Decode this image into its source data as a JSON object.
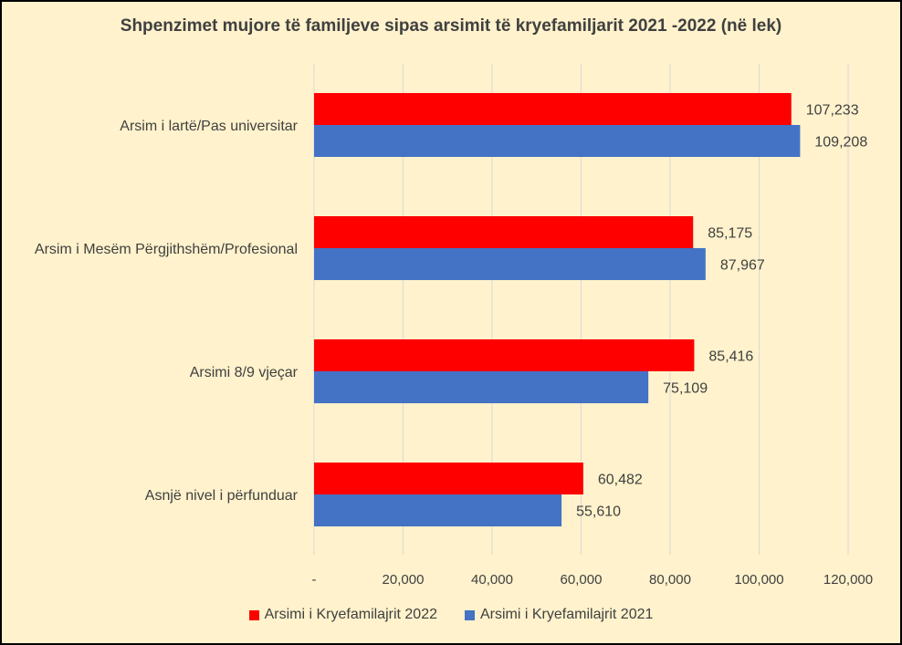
{
  "chart_data": {
    "type": "bar",
    "orientation": "horizontal",
    "title": "Shpenzimet mujore të familjeve sipas arsimit të kryefamiljarit 2021 -2022 (në lek)",
    "categories": [
      "Arsim i lartë/Pas universitar",
      "Arsim i Mesëm Përgjithshëm/Profesional",
      "Arsimi 8/9 vjeçar",
      "Asnjë nivel i përfunduar"
    ],
    "series": [
      {
        "name": "Arsimi i Kryefamilajrit 2022",
        "color": "#ff0000",
        "values": [
          107233,
          85175,
          85416,
          60482
        ],
        "labels": [
          "107,233",
          "85,175",
          "85,416",
          "60,482"
        ]
      },
      {
        "name": "Arsimi i Kryefamilajrit 2021",
        "color": "#4472c4",
        "values": [
          109208,
          87967,
          75109,
          55610
        ],
        "labels": [
          "109,208",
          "87,967",
          "75,109",
          "55,610"
        ]
      }
    ],
    "xlim": [
      0,
      120000
    ],
    "xticks": [
      0,
      20000,
      40000,
      60000,
      80000,
      100000,
      120000
    ],
    "xtick_labels": [
      "-",
      "20,000",
      "40,000",
      "60,000",
      "80,000",
      "100,000",
      "120,000"
    ],
    "grid": "vertical",
    "legend_position": "bottom"
  },
  "colors": {
    "background": "#fff2cc",
    "gridline": "#d9d9d9",
    "text": "#404040"
  }
}
